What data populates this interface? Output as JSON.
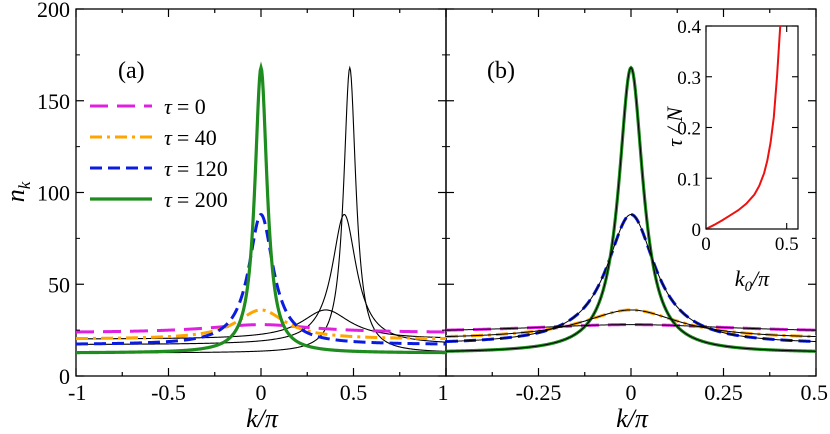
{
  "chart_data": [
    {
      "type": "line",
      "panel_label": "(a)",
      "xlabel": "k/π",
      "ylabel": "n_k",
      "xlim": [
        -1,
        1
      ],
      "ylim": [
        0,
        200
      ],
      "xticks": [
        "-1",
        "-0.5",
        "0",
        "0.5",
        "1"
      ],
      "xtick_values": [
        -1,
        -0.5,
        0,
        0.5,
        1
      ],
      "yticks": [
        "0",
        "50",
        "100",
        "150",
        "200"
      ],
      "ytick_values": [
        0,
        50,
        100,
        150,
        200
      ],
      "legend_position": "upper-left",
      "series": [
        {
          "name": "τ = 0",
          "label_sym": "τ",
          "label_val": "= 0",
          "color": "#e020e0",
          "style": "long-dash",
          "width": 3,
          "center": 0,
          "peak": 28,
          "gamma": 0.35,
          "base": 23.5
        },
        {
          "name": "τ = 40",
          "label_sym": "τ",
          "label_val": "= 40",
          "color": "#ffa500",
          "style": "dash-dot",
          "width": 3,
          "center": 0,
          "peak": 36,
          "gamma": 0.16,
          "base": 20
        },
        {
          "name": "τ = 120",
          "label_sym": "τ",
          "label_val": "= 120",
          "color": "#0b1ce0",
          "style": "dash",
          "width": 3,
          "center": 0,
          "peak": 88,
          "gamma": 0.08,
          "base": 17
        },
        {
          "name": "τ = 200",
          "label_sym": "τ",
          "label_val": "= 200",
          "color": "#1e8c1e",
          "style": "solid",
          "width": 3.2,
          "center": 0,
          "peak": 168,
          "gamma": 0.04,
          "base": 12.5
        }
      ],
      "thin_curves": [
        {
          "center": 0.35,
          "peak": 36,
          "gamma": 0.16,
          "base": 20
        },
        {
          "center": 0.45,
          "peak": 88,
          "gamma": 0.08,
          "base": 17
        },
        {
          "center": 0.48,
          "peak": 168,
          "gamma": 0.04,
          "base": 12.5
        }
      ]
    },
    {
      "type": "line",
      "panel_label": "(b)",
      "xlabel": "k/π",
      "xlim": [
        -0.5,
        0.5
      ],
      "ylim": [
        0,
        200
      ],
      "xticks": [
        "-0.25",
        "0",
        "0.25",
        "0.5"
      ],
      "xtick_values": [
        -0.25,
        0,
        0.25,
        0.5
      ],
      "series": [
        {
          "name": "τ = 0",
          "color": "#e020e0",
          "style": "long-dash",
          "width": 3,
          "center": 0,
          "peak": 28,
          "gamma": 0.35,
          "base": 23.5
        },
        {
          "name": "τ = 40",
          "color": "#ffa500",
          "style": "dash-dot",
          "width": 3,
          "center": 0,
          "peak": 36,
          "gamma": 0.16,
          "base": 20
        },
        {
          "name": "τ = 120",
          "color": "#0b1ce0",
          "style": "dash",
          "width": 3,
          "center": 0,
          "peak": 88,
          "gamma": 0.08,
          "base": 17
        },
        {
          "name": "τ = 200",
          "color": "#1e8c1e",
          "style": "solid",
          "width": 3.2,
          "center": 0,
          "peak": 168,
          "gamma": 0.04,
          "base": 12.5
        }
      ]
    },
    {
      "type": "line",
      "panel_label": "inset",
      "xlabel_main": "k",
      "xlabel_sub": "0",
      "xlabel_tail": "/π",
      "ylabel": "τ / N",
      "xlim": [
        0,
        0.57
      ],
      "ylim": [
        0,
        0.4
      ],
      "xticks": [
        "0",
        "0.5"
      ],
      "xtick_values": [
        0,
        0.5
      ],
      "yticks": [
        "0",
        "0.1",
        "0.2",
        "0.3",
        "0.4"
      ],
      "ytick_values": [
        0,
        0.1,
        0.2,
        0.3,
        0.4
      ],
      "series": [
        {
          "name": "τ/N",
          "color": "#ee1111",
          "x": [
            0,
            0.05,
            0.1,
            0.15,
            0.2,
            0.25,
            0.3,
            0.33,
            0.36,
            0.38,
            0.4,
            0.42,
            0.43,
            0.44,
            0.45,
            0.46
          ],
          "y": [
            0,
            0.008,
            0.017,
            0.027,
            0.037,
            0.05,
            0.068,
            0.085,
            0.11,
            0.135,
            0.17,
            0.22,
            0.26,
            0.3,
            0.35,
            0.4
          ]
        }
      ]
    }
  ]
}
